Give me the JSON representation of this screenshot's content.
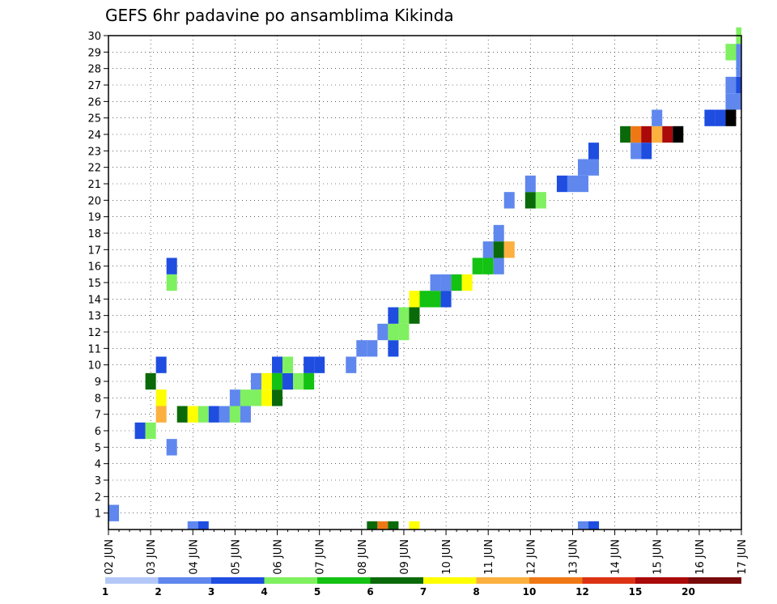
{
  "chart_data": {
    "type": "heatmap",
    "title": "GEFS 6hr padavine po ansamblima Kikinda",
    "xlabel": "",
    "ylabel": "",
    "x_ticks": [
      "02 JUN",
      "03 JUN",
      "04 JUN",
      "05 JUN",
      "06 JUN",
      "07 JUN",
      "08 JUN",
      "09 JUN",
      "10 JUN",
      "11 JUN",
      "12 JUN",
      "13 JUN",
      "14 JUN",
      "15 JUN",
      "16 JUN",
      "17 JUN"
    ],
    "y_ticks": [
      "1",
      "2",
      "3",
      "4",
      "5",
      "6",
      "7",
      "8",
      "9",
      "10",
      "11",
      "12",
      "13",
      "14",
      "15",
      "16",
      "17",
      "18",
      "19",
      "20",
      "21",
      "22",
      "23",
      "24",
      "25",
      "26",
      "27",
      "28",
      "29",
      "30"
    ],
    "x_range_steps": [
      0,
      60
    ],
    "y_range": [
      0,
      30
    ],
    "steps_per_day": 4,
    "grid": true,
    "legend": {
      "position": "bottom",
      "labels": [
        "1",
        "2",
        "3",
        "4",
        "5",
        "6",
        "7",
        "8",
        "10",
        "12",
        "15",
        "20"
      ],
      "colors": [
        "#b4c8f8",
        "#5f87ee",
        "#1e4de0",
        "#7ff060",
        "#13c213",
        "#0a6a0a",
        "#ffff00",
        "#fbb040",
        "#f07814",
        "#dc3214",
        "#aa0a0a",
        "#780a0a"
      ]
    },
    "cells": [
      [
        1,
        0,
        1
      ],
      [
        6,
        3,
        2
      ],
      [
        6,
        4,
        3
      ],
      [
        7,
        5,
        7
      ],
      [
        8,
        5,
        6
      ],
      [
        9,
        4,
        5
      ],
      [
        10,
        5,
        2
      ],
      [
        5,
        6,
        1
      ],
      [
        15,
        6,
        3
      ],
      [
        16,
        6,
        2
      ],
      [
        7,
        7,
        5
      ],
      [
        7,
        8,
        6
      ],
      [
        7,
        9,
        3
      ],
      [
        7,
        10,
        2
      ],
      [
        7,
        11,
        1
      ],
      [
        7,
        12,
        3
      ],
      [
        7,
        13,
        1
      ],
      [
        8,
        12,
        1
      ],
      [
        8,
        13,
        3
      ],
      [
        8,
        14,
        3
      ],
      [
        8,
        15,
        6
      ],
      [
        8,
        16,
        5
      ],
      [
        9,
        14,
        1
      ],
      [
        9,
        15,
        6
      ],
      [
        9,
        16,
        4
      ],
      [
        9,
        17,
        2
      ],
      [
        9,
        18,
        3
      ],
      [
        9,
        19,
        4
      ],
      [
        10,
        16,
        2
      ],
      [
        10,
        17,
        3
      ],
      [
        10,
        19,
        2
      ],
      [
        10,
        20,
        2
      ],
      [
        10,
        23,
        1
      ],
      [
        11,
        24,
        1
      ],
      [
        11,
        25,
        1
      ],
      [
        11,
        27,
        2
      ],
      [
        12,
        26,
        1
      ],
      [
        12,
        27,
        3
      ],
      [
        12,
        28,
        3
      ],
      [
        13,
        27,
        2
      ],
      [
        13,
        28,
        3
      ],
      [
        13,
        29,
        5
      ],
      [
        14,
        29,
        6
      ],
      [
        14,
        30,
        4
      ],
      [
        14,
        31,
        4
      ],
      [
        14,
        32,
        2
      ],
      [
        15,
        31,
        1
      ],
      [
        15,
        32,
        1
      ],
      [
        15,
        33,
        4
      ],
      [
        15,
        34,
        6
      ],
      [
        16,
        35,
        4
      ],
      [
        16,
        36,
        4
      ],
      [
        16,
        37,
        1
      ],
      [
        17,
        36,
        1
      ],
      [
        17,
        37,
        5
      ],
      [
        17,
        38,
        7
      ],
      [
        18,
        37,
        1
      ],
      [
        20,
        38,
        1
      ],
      [
        20,
        40,
        5
      ],
      [
        20,
        41,
        3
      ],
      [
        21,
        40,
        1
      ],
      [
        21,
        43,
        2
      ],
      [
        21,
        44,
        1
      ],
      [
        21,
        45,
        1
      ],
      [
        22,
        45,
        1
      ],
      [
        22,
        46,
        1
      ],
      [
        23,
        46,
        2
      ],
      [
        23,
        50,
        1
      ],
      [
        23,
        51,
        2
      ],
      [
        24,
        49,
        5
      ],
      [
        24,
        50,
        8
      ],
      [
        24,
        51,
        10
      ],
      [
        24,
        52,
        7
      ],
      [
        24,
        53,
        10
      ],
      [
        24,
        54,
        12
      ],
      [
        25,
        52,
        1
      ],
      [
        25,
        57,
        2
      ],
      [
        25,
        58,
        2
      ],
      [
        25,
        59,
        12
      ],
      [
        26,
        59,
        1
      ],
      [
        26,
        60,
        1
      ],
      [
        27,
        59,
        1
      ],
      [
        27,
        60,
        2
      ],
      [
        28,
        60,
        1
      ],
      [
        29,
        60,
        1
      ],
      [
        29,
        59,
        3
      ],
      [
        30,
        60,
        3
      ]
    ],
    "bottom_row": [
      [
        8,
        1
      ],
      [
        9,
        2
      ],
      [
        25,
        5
      ],
      [
        26,
        8
      ],
      [
        27,
        5
      ],
      [
        29,
        6
      ],
      [
        45,
        1
      ],
      [
        46,
        2
      ]
    ]
  }
}
